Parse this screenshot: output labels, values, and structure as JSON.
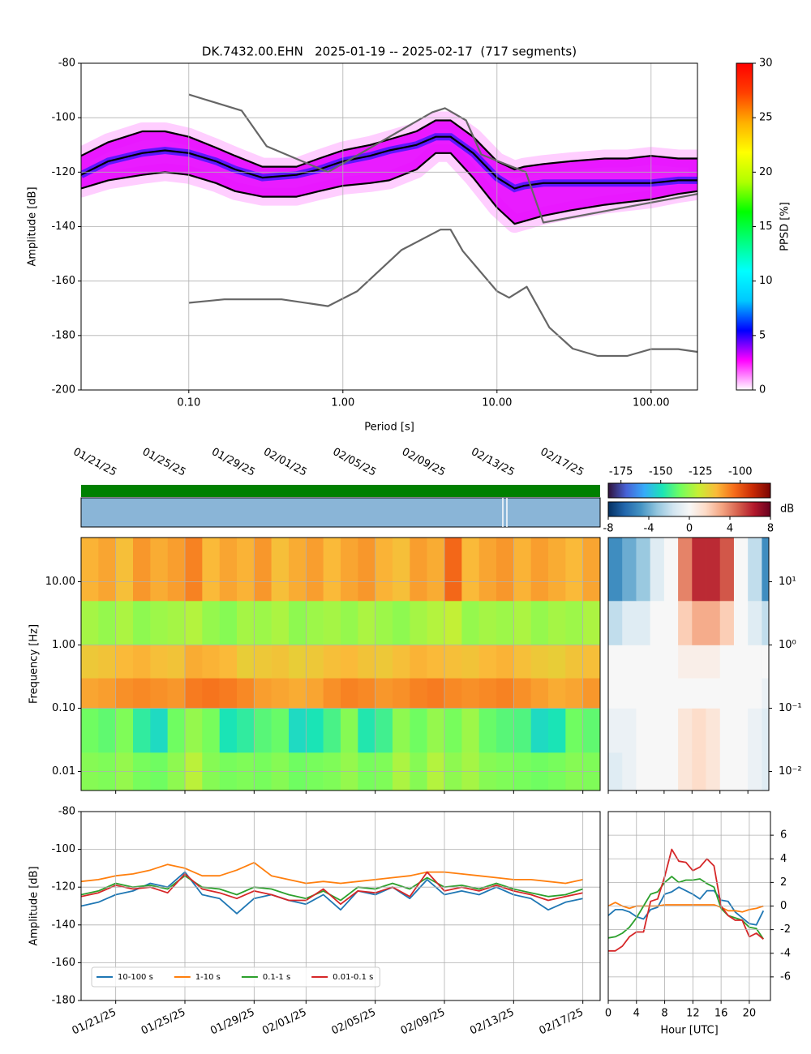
{
  "chart_data": [
    {
      "type": "ppsd",
      "title": "DK.7432.00.EHN   2025-01-19 -- 2025-02-17  (717 segments)",
      "xlabel": "Period [s]",
      "ylabel": "Amplitude [dB]",
      "xscale": "log",
      "grid": true,
      "xlim": [
        0.02,
        200
      ],
      "ylim": [
        -200,
        -80
      ],
      "xticks": [
        {
          "value": 0.1,
          "label": "0.10"
        },
        {
          "value": 1,
          "label": "1.00"
        },
        {
          "value": 10,
          "label": "10.00"
        },
        {
          "value": 100,
          "label": "100.00"
        }
      ],
      "yticks": [
        -200,
        -180,
        -160,
        -140,
        -120,
        -100,
        -80
      ],
      "x": [
        0.02,
        0.03,
        0.05,
        0.07,
        0.1,
        0.15,
        0.2,
        0.3,
        0.5,
        0.7,
        1,
        1.5,
        2,
        3,
        4,
        5,
        7,
        10,
        13,
        15,
        20,
        30,
        50,
        70,
        100,
        150,
        200
      ],
      "series": [
        {
          "color": "#000000",
          "values": [
            -114,
            -109,
            -105,
            -105,
            -107,
            -111,
            -114,
            -118,
            -118,
            -115,
            -112,
            -110,
            -108,
            -105,
            -101,
            -101,
            -107,
            -116,
            -119,
            -118,
            -117,
            -116,
            -115,
            -115,
            -114,
            -115,
            -115
          ]
        },
        {
          "color": "#000000",
          "values": [
            -121,
            -116,
            -113,
            -112,
            -113,
            -116,
            -119,
            -122,
            -121,
            -119,
            -116,
            -114,
            -112,
            -110,
            -107,
            -107,
            -113,
            -122,
            -126,
            -125,
            -124,
            -124,
            -124,
            -124,
            -124,
            -123,
            -123
          ]
        },
        {
          "color": "#000000",
          "values": [
            -126,
            -123,
            -121,
            -120,
            -121,
            -124,
            -127,
            -129,
            -129,
            -127,
            -125,
            -124,
            -123,
            -119,
            -113,
            -113,
            -122,
            -133,
            -139,
            -138,
            -136,
            -134,
            -132,
            -131,
            -130,
            -128,
            -127
          ]
        },
        {
          "color": "#666666",
          "x": [
            0.1,
            0.22,
            0.32,
            0.8,
            3.8,
            4.6,
            6.3,
            7.9,
            15.4,
            20,
            200
          ],
          "values": [
            -91.5,
            -97.4,
            -110.5,
            -120,
            -98,
            -96.5,
            -101,
            -113.5,
            -120,
            -138.5,
            -128
          ]
        },
        {
          "color": "#666666",
          "x": [
            0.1,
            0.17,
            0.4,
            0.8,
            1.24,
            2.4,
            4.3,
            5,
            6,
            10,
            12,
            15.6,
            21.9,
            31,
            45,
            70,
            100,
            150,
            200
          ],
          "values": [
            -168,
            -166.7,
            -166.7,
            -169.2,
            -163.7,
            -148.6,
            -141.1,
            -141.1,
            -149,
            -163.7,
            -166.1,
            -162.1,
            -177.1,
            -184.8,
            -187.5,
            -187.5,
            -185,
            -185,
            -186
          ]
        }
      ],
      "clabel": "PPSD [%]",
      "clim": [
        0,
        30
      ],
      "cticks": [
        0,
        5,
        10,
        15,
        20,
        25,
        30
      ],
      "cmap": [
        "#ffffff",
        "#ff00ff",
        "#0000ff",
        "#00c8ff",
        "#00ffff",
        "#00ff80",
        "#00ff00",
        "#b0ff00",
        "#ffff00",
        "#ffb000",
        "#ff4000",
        "#ff0000"
      ]
    },
    {
      "type": "heatmap",
      "ylabel": "Frequency [Hz]",
      "yscale": "log",
      "grid": true,
      "xlim": [
        "01/19/25",
        "02/18/25"
      ],
      "ylim": [
        0.005,
        50
      ],
      "xticks": [
        "01/21/25",
        "01/25/25",
        "01/29/25",
        "02/01/25",
        "02/05/25",
        "02/09/25",
        "02/13/25",
        "02/17/25"
      ],
      "yticks": [
        0.01,
        {
          "value": 0.1,
          "label": "0.10"
        },
        {
          "value": 1,
          "label": "1.00"
        },
        {
          "value": 10,
          "label": "10.00"
        }
      ],
      "x_bins": [
        "01/19/25",
        "01/20/25",
        "01/21/25",
        "01/22/25",
        "01/23/25",
        "01/24/25",
        "01/25/25",
        "01/26/25",
        "01/27/25",
        "01/28/25",
        "01/29/25",
        "01/30/25",
        "01/31/25",
        "02/01/25",
        "02/02/25",
        "02/03/25",
        "02/04/25",
        "02/05/25",
        "02/06/25",
        "02/07/25",
        "02/08/25",
        "02/09/25",
        "02/10/25",
        "02/11/25",
        "02/12/25",
        "02/13/25",
        "02/14/25",
        "02/15/25",
        "02/16/25",
        "02/17/25",
        "02/18/25"
      ],
      "y_bins": [
        0.005,
        0.02,
        0.1,
        0.3,
        1,
        5,
        50
      ],
      "z": [
        [
          -135,
          -136,
          -133,
          -137,
          -138,
          -134,
          -128,
          -135,
          -137,
          -136,
          -137,
          -135,
          -138,
          -137,
          -136,
          -133,
          -137,
          -136,
          -130,
          -135,
          -129,
          -134,
          -131,
          -135,
          -136,
          -137,
          -138,
          -137,
          -135,
          -136
        ],
        [
          -138,
          -140,
          -136,
          -146,
          -151,
          -138,
          -133,
          -137,
          -149,
          -146,
          -141,
          -139,
          -151,
          -149,
          -143,
          -135,
          -148,
          -144,
          -134,
          -138,
          -133,
          -137,
          -132,
          -139,
          -141,
          -142,
          -151,
          -149,
          -138,
          -140
        ],
        [
          -112,
          -111,
          -109,
          -108,
          -109,
          -110,
          -106,
          -105,
          -106,
          -108,
          -111,
          -112,
          -113,
          -112,
          -109,
          -107,
          -108,
          -110,
          -109,
          -107,
          -106,
          -108,
          -109,
          -108,
          -107,
          -109,
          -111,
          -113,
          -112,
          -110
        ],
        [
          -118,
          -117,
          -115,
          -114,
          -116,
          -117,
          -113,
          -114,
          -115,
          -119,
          -118,
          -117,
          -119,
          -118,
          -116,
          -115,
          -117,
          -118,
          -116,
          -114,
          -115,
          -116,
          -117,
          -115,
          -114,
          -116,
          -118,
          -119,
          -117,
          -116
        ],
        [
          -131,
          -133,
          -130,
          -134,
          -132,
          -131,
          -129,
          -133,
          -135,
          -131,
          -132,
          -130,
          -134,
          -132,
          -131,
          -133,
          -130,
          -132,
          -134,
          -131,
          -129,
          -127,
          -133,
          -131,
          -132,
          -130,
          -133,
          -131,
          -132,
          -130
        ],
        [
          -114,
          -112,
          -116,
          -110,
          -113,
          -111,
          -107,
          -115,
          -112,
          -114,
          -110,
          -116,
          -113,
          -111,
          -115,
          -112,
          -110,
          -114,
          -116,
          -111,
          -113,
          -103,
          -115,
          -112,
          -110,
          -114,
          -111,
          -113,
          -115,
          -112
        ]
      ],
      "clim": [
        -183,
        -81
      ],
      "cticks": [
        -175,
        -150,
        -125,
        -100
      ],
      "cmap": [
        "#30123b",
        "#4662d7",
        "#36aaf9",
        "#1ae4b6",
        "#72fe5e",
        "#c8ef34",
        "#faba39",
        "#f66b19",
        "#ca2a04",
        "#7a0403"
      ]
    },
    {
      "type": "heatmap",
      "yscale": "log",
      "grid": false,
      "xlim": [
        0,
        23
      ],
      "ylim": [
        0.005,
        50
      ],
      "xticks": [
        0,
        4,
        8,
        12,
        16,
        20
      ],
      "yticks": [
        {
          "value": 0.01,
          "label": "10⁻²"
        },
        {
          "value": 0.1,
          "label": "10⁻¹"
        },
        {
          "value": 1,
          "label": "10⁰"
        },
        {
          "value": 10,
          "label": "10¹"
        }
      ],
      "x_bins": [
        0,
        2,
        4,
        6,
        8,
        10,
        12,
        14,
        16,
        18,
        20,
        22,
        23
      ],
      "y_bins": [
        0.005,
        0.02,
        0.1,
        0.3,
        1,
        5,
        50
      ],
      "z": [
        [
          -1,
          -0.5,
          0,
          0,
          0,
          1,
          1.5,
          1,
          0,
          0,
          -0.5,
          -1
        ],
        [
          -0.5,
          -0.5,
          0,
          0,
          0,
          1,
          1.5,
          1,
          0,
          0,
          -0.5,
          -1
        ],
        [
          0,
          0,
          0,
          0,
          0,
          0,
          0,
          0,
          0,
          0,
          0,
          -0.5
        ],
        [
          0,
          0,
          0,
          0,
          0,
          0.5,
          0.5,
          0.5,
          0,
          0,
          0,
          0
        ],
        [
          -2,
          -1,
          -1,
          0,
          0,
          2,
          3,
          3,
          2,
          0,
          -1,
          -2
        ],
        [
          -5,
          -4,
          -3,
          -1,
          0,
          4,
          6,
          6,
          5,
          0,
          -2,
          -5
        ]
      ],
      "clabel": "dB",
      "clim": [
        -8,
        8
      ],
      "cticks": [
        -8,
        -4,
        0,
        4,
        8
      ],
      "cmap": [
        "#053061",
        "#2166ac",
        "#4393c3",
        "#92c5de",
        "#d1e5f0",
        "#f7f7f7",
        "#fddbc7",
        "#f4a582",
        "#d6604d",
        "#b2182b",
        "#67001f"
      ]
    },
    {
      "type": "line",
      "ylabel": "Amplitude [dB]",
      "grid": true,
      "legend": "lower left",
      "xlim": [
        "01/19/25",
        "02/18/25"
      ],
      "ylim": [
        -180,
        -80
      ],
      "xticks": [
        "01/21/25",
        "01/25/25",
        "01/29/25",
        "02/01/25",
        "02/05/25",
        "02/09/25",
        "02/13/25",
        "02/17/25"
      ],
      "yticks": [
        -180,
        -160,
        -140,
        -120,
        -100,
        -80
      ],
      "x": [
        "01/19/25",
        "01/20/25",
        "01/21/25",
        "01/22/25",
        "01/23/25",
        "01/24/25",
        "01/25/25",
        "01/26/25",
        "01/27/25",
        "01/28/25",
        "01/29/25",
        "01/30/25",
        "01/31/25",
        "02/01/25",
        "02/02/25",
        "02/03/25",
        "02/04/25",
        "02/05/25",
        "02/06/25",
        "02/07/25",
        "02/08/25",
        "02/09/25",
        "02/10/25",
        "02/11/25",
        "02/12/25",
        "02/13/25",
        "02/14/25",
        "02/15/25",
        "02/16/25",
        "02/17/25"
      ],
      "series": [
        {
          "name": "10-100 s",
          "color": "#1f77b4",
          "values": [
            -130,
            -128,
            -124,
            -122,
            -118,
            -120,
            -112,
            -124,
            -126,
            -134,
            -126,
            -124,
            -127,
            -129,
            -124,
            -132,
            -122,
            -124,
            -120,
            -126,
            -116,
            -124,
            -122,
            -124,
            -120,
            -124,
            -126,
            -132,
            -128,
            -126
          ]
        },
        {
          "name": "1-10 s",
          "color": "#ff7f0e",
          "values": [
            -117,
            -116,
            -114,
            -113,
            -111,
            -108,
            -110,
            -114,
            -114,
            -111,
            -107,
            -114,
            -116,
            -118,
            -117,
            -118,
            -117,
            -116,
            -115,
            -114,
            -112,
            -112,
            -113,
            -114,
            -115,
            -116,
            -116,
            -117,
            -118,
            -116
          ]
        },
        {
          "name": "0.1-1 s",
          "color": "#2ca02c",
          "values": [
            -124,
            -122,
            -118,
            -120,
            -119,
            -121,
            -114,
            -120,
            -121,
            -124,
            -120,
            -121,
            -124,
            -126,
            -122,
            -127,
            -120,
            -121,
            -118,
            -121,
            -115,
            -120,
            -119,
            -121,
            -118,
            -121,
            -123,
            -125,
            -124,
            -121
          ]
        },
        {
          "name": "0.01-0.1 s",
          "color": "#d62728",
          "values": [
            -125,
            -123,
            -119,
            -121,
            -120,
            -123,
            -113,
            -121,
            -123,
            -126,
            -122,
            -124,
            -127,
            -127,
            -121,
            -129,
            -122,
            -123,
            -120,
            -125,
            -112,
            -122,
            -120,
            -122,
            -119,
            -122,
            -124,
            -127,
            -125,
            -123
          ]
        }
      ]
    },
    {
      "type": "line",
      "xlabel": "Hour [UTC]",
      "grid": true,
      "xlim": [
        0,
        23
      ],
      "ylim": [
        -8,
        8
      ],
      "xticks": [
        0,
        4,
        8,
        12,
        16,
        20
      ],
      "yticks": [
        -6,
        -4,
        -2,
        0,
        2,
        4,
        6
      ],
      "x": [
        0,
        1,
        2,
        3,
        4,
        5,
        6,
        7,
        8,
        9,
        10,
        11,
        12,
        13,
        14,
        15,
        16,
        17,
        18,
        19,
        20,
        21,
        22
      ],
      "series": [
        {
          "color": "#1f77b4",
          "values": [
            -0.8,
            -0.3,
            -0.3,
            -0.5,
            -0.9,
            -1.1,
            -0.3,
            -0.1,
            1,
            1.2,
            1.6,
            1.3,
            1,
            0.6,
            1.3,
            1.3,
            0.5,
            0.4,
            -0.5,
            -1,
            -1.5,
            -1.6,
            -0.4
          ]
        },
        {
          "color": "#ff7f0e",
          "values": [
            0,
            0.3,
            0,
            -0.2,
            0,
            0,
            0,
            0,
            0.1,
            0.1,
            0.1,
            0.1,
            0.1,
            0.1,
            0.1,
            0.1,
            -0.1,
            -0.4,
            -0.4,
            -0.5,
            -0.3,
            -0.2,
            0
          ]
        },
        {
          "color": "#2ca02c",
          "values": [
            -2.7,
            -2.6,
            -2.3,
            -1.8,
            -1,
            0,
            1,
            1.2,
            2,
            2.5,
            2,
            2.2,
            2.2,
            2.3,
            1.9,
            1.6,
            -0.2,
            -0.8,
            -1,
            -1.2,
            -1.8,
            -1.9,
            -2.8
          ]
        },
        {
          "color": "#d62728",
          "values": [
            -3.8,
            -3.8,
            -3.4,
            -2.6,
            -2.2,
            -2.2,
            0.4,
            0.6,
            2.5,
            4.8,
            3.8,
            3.7,
            3,
            3.3,
            4,
            3.4,
            0,
            -0.8,
            -1.2,
            -1.2,
            -2.6,
            -2.3,
            -2.8
          ]
        }
      ]
    }
  ]
}
